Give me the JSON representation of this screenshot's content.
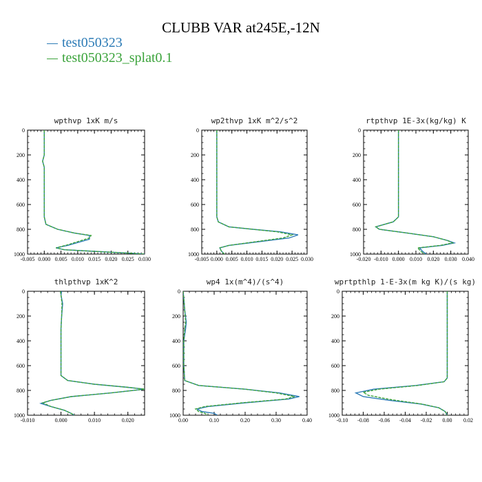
{
  "title": "CLUBB VAR at245E,-12N",
  "legend": [
    {
      "name": "test050323",
      "color": "#2c7bb6"
    },
    {
      "name": "test050323_splat0.1",
      "color": "#3ba33b"
    }
  ],
  "chart_data": [
    {
      "type": "line",
      "title": "wpthvp  1xK m/s",
      "xlim": [
        -0.005,
        0.03
      ],
      "ylim": [
        1000,
        0
      ],
      "xticks": [
        "-0.005",
        "0.000",
        "0.005",
        "0.010",
        "0.015",
        "0.020",
        "0.025",
        "0.030"
      ],
      "yticks": [
        "0",
        "200",
        "400",
        "600",
        "800",
        "1000"
      ],
      "series": [
        {
          "name": "test050323",
          "points": [
            [
              0.0,
              0
            ],
            [
              0.0,
              100
            ],
            [
              0.0,
              200
            ],
            [
              -0.0005,
              250
            ],
            [
              0.0,
              300
            ],
            [
              0.0,
              500
            ],
            [
              0.0,
              700
            ],
            [
              0.0005,
              760
            ],
            [
              0.004,
              800
            ],
            [
              0.009,
              830
            ],
            [
              0.0135,
              850
            ],
            [
              0.0135,
              880
            ],
            [
              0.007,
              930
            ],
            [
              0.0035,
              950
            ],
            [
              0.006,
              965
            ],
            [
              0.013,
              975
            ],
            [
              0.02,
              985
            ],
            [
              0.026,
              993
            ],
            [
              0.03,
              1000
            ]
          ]
        },
        {
          "name": "test050323_splat0.1",
          "points": [
            [
              0.0,
              0
            ],
            [
              0.0,
              100
            ],
            [
              0.0,
              200
            ],
            [
              -0.0005,
              250
            ],
            [
              0.0,
              300
            ],
            [
              0.0,
              500
            ],
            [
              0.0,
              700
            ],
            [
              0.0005,
              760
            ],
            [
              0.004,
              800
            ],
            [
              0.009,
              830
            ],
            [
              0.014,
              850
            ],
            [
              0.0135,
              870
            ],
            [
              0.007,
              925
            ],
            [
              0.0035,
              950
            ],
            [
              0.006,
              965
            ],
            [
              0.013,
              975
            ],
            [
              0.02,
              985
            ],
            [
              0.026,
              993
            ],
            [
              0.03,
              1000
            ]
          ]
        }
      ]
    },
    {
      "type": "line",
      "title": "wp2thvp  1xK m^2/s^2",
      "xlim": [
        -0.005,
        0.03
      ],
      "ylim": [
        1000,
        0
      ],
      "xticks": [
        "-0.005",
        "0.000",
        "0.005",
        "0.010",
        "0.015",
        "0.020",
        "0.025",
        "0.030"
      ],
      "yticks": [
        "0",
        "200",
        "400",
        "600",
        "800",
        "1000"
      ],
      "series": [
        {
          "name": "test050323",
          "points": [
            [
              0.0,
              0
            ],
            [
              0.0,
              300
            ],
            [
              0.0,
              500
            ],
            [
              0.0,
              700
            ],
            [
              0.0005,
              740
            ],
            [
              0.004,
              780
            ],
            [
              0.012,
              800
            ],
            [
              0.021,
              820
            ],
            [
              0.027,
              845
            ],
            [
              0.024,
              870
            ],
            [
              0.014,
              900
            ],
            [
              0.004,
              930
            ],
            [
              0.001,
              950
            ],
            [
              0.0015,
              975
            ],
            [
              0.0025,
              1000
            ]
          ]
        },
        {
          "name": "test050323_splat0.1",
          "points": [
            [
              0.0,
              0
            ],
            [
              0.0,
              300
            ],
            [
              0.0,
              500
            ],
            [
              0.0,
              700
            ],
            [
              0.0005,
              740
            ],
            [
              0.004,
              780
            ],
            [
              0.012,
              800
            ],
            [
              0.02,
              820
            ],
            [
              0.025,
              845
            ],
            [
              0.022,
              870
            ],
            [
              0.013,
              900
            ],
            [
              0.004,
              930
            ],
            [
              0.001,
              950
            ],
            [
              0.0015,
              975
            ],
            [
              0.0025,
              1000
            ]
          ]
        }
      ]
    },
    {
      "type": "line",
      "title": "rtpthvp  1E-3x(kg/kg) K",
      "xlim": [
        -0.02,
        0.04
      ],
      "ylim": [
        1000,
        0
      ],
      "xticks": [
        "-0.020",
        "-0.010",
        "0.000",
        "0.010",
        "0.020",
        "0.030",
        "0.040"
      ],
      "yticks": [
        "0",
        "200",
        "400",
        "600",
        "800",
        "1000"
      ],
      "series": [
        {
          "name": "test050323",
          "points": [
            [
              0.0,
              0
            ],
            [
              0.0,
              300
            ],
            [
              0.0,
              500
            ],
            [
              0.0,
              700
            ],
            [
              -0.003,
              740
            ],
            [
              -0.013,
              780
            ],
            [
              -0.011,
              800
            ],
            [
              0.005,
              830
            ],
            [
              0.02,
              860
            ],
            [
              0.028,
              890
            ],
            [
              0.032,
              910
            ],
            [
              0.025,
              930
            ],
            [
              0.012,
              950
            ],
            [
              0.014,
              980
            ],
            [
              0.016,
              1000
            ]
          ]
        },
        {
          "name": "test050323_splat0.1",
          "points": [
            [
              0.0,
              0
            ],
            [
              0.0,
              300
            ],
            [
              0.0,
              500
            ],
            [
              0.0,
              700
            ],
            [
              -0.003,
              740
            ],
            [
              -0.013,
              780
            ],
            [
              -0.011,
              800
            ],
            [
              0.005,
              830
            ],
            [
              0.02,
              860
            ],
            [
              0.028,
              890
            ],
            [
              0.031,
              910
            ],
            [
              0.024,
              930
            ],
            [
              0.011,
              950
            ],
            [
              0.013,
              980
            ],
            [
              0.015,
              1000
            ]
          ]
        }
      ]
    },
    {
      "type": "line",
      "title": "thlpthvp  1xK^2",
      "xlim": [
        -0.01,
        0.025
      ],
      "ylim": [
        1000,
        0
      ],
      "xticks": [
        "-0.010",
        "0.000",
        "0.010",
        "0.020"
      ],
      "yticks": [
        "0",
        "200",
        "400",
        "600",
        "800",
        "1000"
      ],
      "series": [
        {
          "name": "test050323",
          "points": [
            [
              0.0002,
              0
            ],
            [
              0.0,
              30
            ],
            [
              0.0005,
              100
            ],
            [
              0.0002,
              200
            ],
            [
              0.0,
              300
            ],
            [
              0.0,
              500
            ],
            [
              0.0,
              680
            ],
            [
              0.002,
              720
            ],
            [
              0.01,
              750
            ],
            [
              0.02,
              775
            ],
            [
              0.025,
              790
            ],
            [
              0.015,
              820
            ],
            [
              0.003,
              850
            ],
            [
              -0.003,
              880
            ],
            [
              -0.006,
              905
            ],
            [
              -0.003,
              930
            ],
            [
              0.001,
              960
            ],
            [
              0.003,
              985
            ],
            [
              0.004,
              1000
            ]
          ]
        },
        {
          "name": "test050323_splat0.1",
          "points": [
            [
              -0.0002,
              0
            ],
            [
              0.0,
              30
            ],
            [
              0.0003,
              100
            ],
            [
              0.0002,
              200
            ],
            [
              0.0,
              300
            ],
            [
              0.0,
              500
            ],
            [
              0.0,
              680
            ],
            [
              0.002,
              720
            ],
            [
              0.01,
              750
            ],
            [
              0.02,
              775
            ],
            [
              0.025,
              790
            ],
            [
              0.015,
              820
            ],
            [
              0.003,
              850
            ],
            [
              -0.003,
              880
            ],
            [
              -0.0055,
              900
            ],
            [
              -0.003,
              930
            ],
            [
              0.001,
              960
            ],
            [
              0.003,
              985
            ],
            [
              0.004,
              1000
            ]
          ]
        }
      ]
    },
    {
      "type": "line",
      "title": "wp4  1x(m^4)/(s^4)",
      "xlim": [
        0.0,
        0.4
      ],
      "ylim": [
        1000,
        0
      ],
      "xticks": [
        "0.00",
        "0.10",
        "0.20",
        "0.30",
        "0.40"
      ],
      "yticks": [
        "0",
        "200",
        "400",
        "600",
        "800",
        "1000"
      ],
      "series": [
        {
          "name": "test050323",
          "points": [
            [
              0.0,
              0
            ],
            [
              0.005,
              150
            ],
            [
              0.01,
              250
            ],
            [
              0.008,
              300
            ],
            [
              0.002,
              400
            ],
            [
              0.002,
              600
            ],
            [
              0.005,
              720
            ],
            [
              0.05,
              760
            ],
            [
              0.2,
              790
            ],
            [
              0.31,
              820
            ],
            [
              0.375,
              850
            ],
            [
              0.34,
              870
            ],
            [
              0.2,
              900
            ],
            [
              0.08,
              930
            ],
            [
              0.045,
              950
            ],
            [
              0.06,
              970
            ],
            [
              0.1,
              985
            ],
            [
              0.11,
              1000
            ]
          ]
        },
        {
          "name": "test050323_splat0.1",
          "points": [
            [
              0.0,
              0
            ],
            [
              0.005,
              150
            ],
            [
              0.008,
              250
            ],
            [
              0.005,
              300
            ],
            [
              0.002,
              400
            ],
            [
              0.002,
              600
            ],
            [
              0.005,
              720
            ],
            [
              0.05,
              760
            ],
            [
              0.2,
              790
            ],
            [
              0.3,
              820
            ],
            [
              0.36,
              850
            ],
            [
              0.33,
              870
            ],
            [
              0.19,
              900
            ],
            [
              0.07,
              930
            ],
            [
              0.04,
              950
            ],
            [
              0.05,
              970
            ],
            [
              0.07,
              985
            ],
            [
              0.08,
              1000
            ]
          ]
        }
      ]
    },
    {
      "type": "line",
      "title": "wprtpthlp  1-E-3x(m kg K)/(s kg)",
      "xlim": [
        -0.1,
        0.02
      ],
      "ylim": [
        1000,
        0
      ],
      "xticks": [
        "-0.10",
        "-0.08",
        "-0.06",
        "-0.04",
        "-0.02",
        "0.00",
        "0.02"
      ],
      "yticks": [
        "0",
        "200",
        "400",
        "600",
        "800",
        "1000"
      ],
      "series": [
        {
          "name": "test050323",
          "points": [
            [
              0.0,
              0
            ],
            [
              0.0,
              300
            ],
            [
              0.0,
              500
            ],
            [
              0.0,
              700
            ],
            [
              -0.003,
              730
            ],
            [
              -0.03,
              760
            ],
            [
              -0.07,
              790
            ],
            [
              -0.087,
              820
            ],
            [
              -0.08,
              850
            ],
            [
              -0.055,
              880
            ],
            [
              -0.025,
              910
            ],
            [
              -0.008,
              940
            ],
            [
              -0.002,
              970
            ],
            [
              0.0,
              1000
            ]
          ]
        },
        {
          "name": "test050323_splat0.1",
          "points": [
            [
              0.0,
              0
            ],
            [
              0.0,
              300
            ],
            [
              0.0,
              500
            ],
            [
              0.0,
              700
            ],
            [
              -0.003,
              730
            ],
            [
              -0.028,
              760
            ],
            [
              -0.065,
              790
            ],
            [
              -0.08,
              815
            ],
            [
              -0.075,
              840
            ],
            [
              -0.053,
              875
            ],
            [
              -0.024,
              910
            ],
            [
              -0.008,
              940
            ],
            [
              -0.002,
              970
            ],
            [
              0.0,
              1000
            ]
          ]
        }
      ]
    }
  ]
}
